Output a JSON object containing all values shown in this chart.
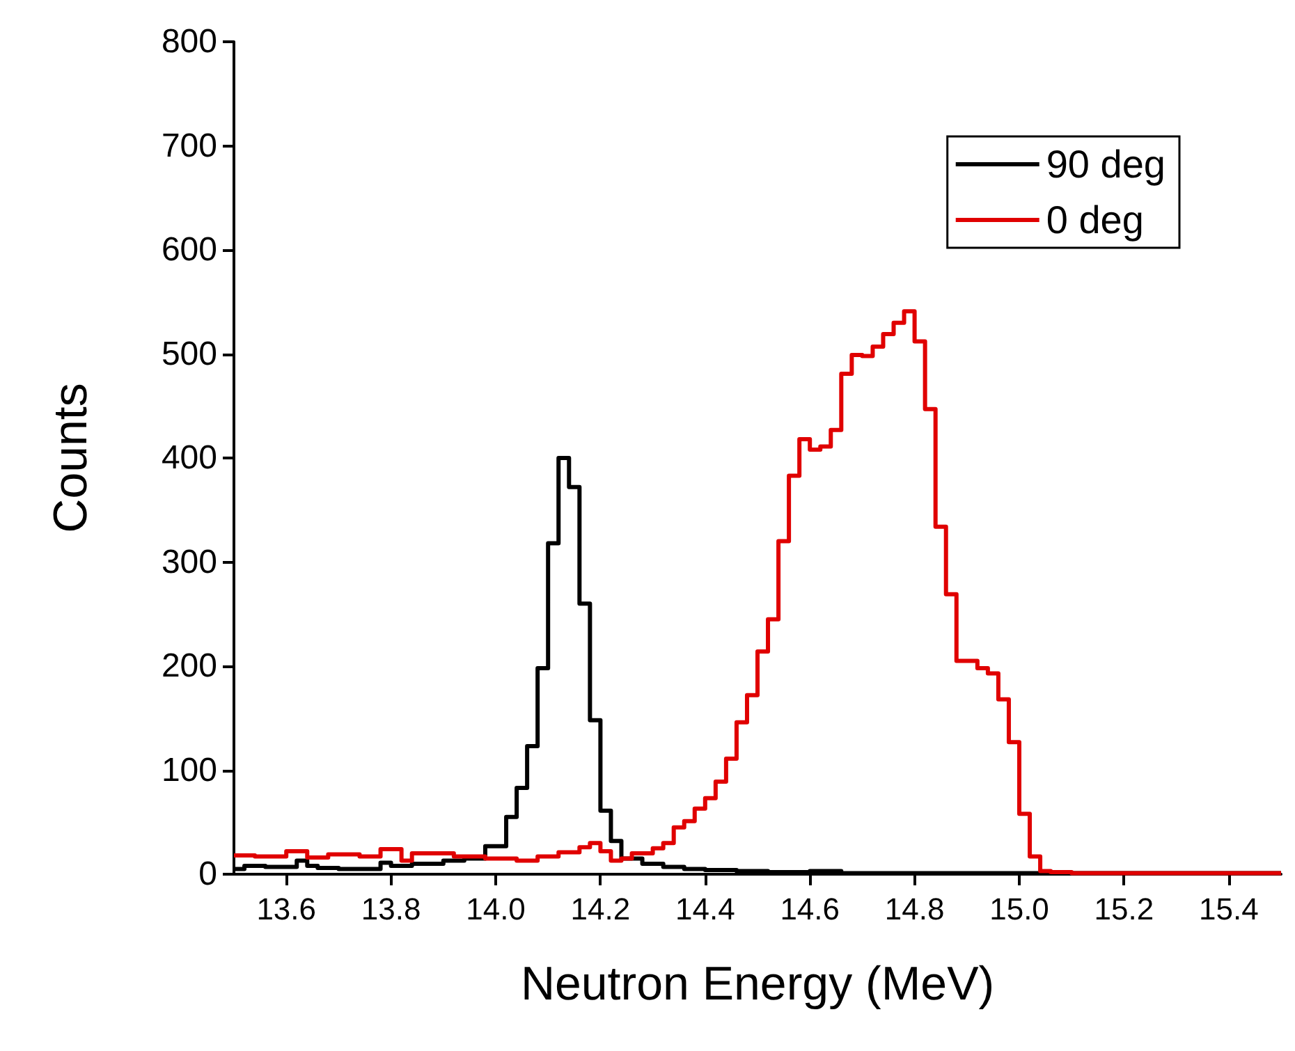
{
  "chart_data": {
    "type": "step",
    "xlabel": "Neutron Energy (MeV)",
    "ylabel": "Counts",
    "xlim": [
      13.5,
      15.5
    ],
    "xticks": [
      13.6,
      13.8,
      {
        "value": 14,
        "label": "14.0"
      },
      14.2,
      14.4,
      14.6,
      14.8,
      {
        "value": 15,
        "label": "15.0"
      },
      15.2,
      15.4
    ],
    "ylim": [
      0,
      800
    ],
    "yticks": [
      0,
      100,
      200,
      300,
      400,
      500,
      600,
      700,
      800
    ],
    "grid": false,
    "legend": "top right",
    "marker": "none",
    "line_style": "solid",
    "series": [
      {
        "name": "90 deg",
        "color": "#000000",
        "x": [
          13.5,
          13.52,
          13.56,
          13.62,
          13.64,
          13.66,
          13.7,
          13.76,
          13.78,
          13.8,
          13.84,
          13.9,
          13.94,
          13.98,
          14.02,
          14.04,
          14.06,
          14.08,
          14.1,
          14.12,
          14.14,
          14.16,
          14.18,
          14.2,
          14.22,
          14.24,
          14.28,
          14.32,
          14.36,
          14.4,
          14.46,
          14.52,
          14.6,
          14.66,
          15.5
        ],
        "values": [
          5,
          8,
          7,
          13,
          8,
          6,
          5,
          5,
          11,
          8,
          10,
          13,
          15,
          27,
          55,
          83,
          123,
          198,
          318,
          400,
          372,
          260,
          148,
          61,
          32,
          15,
          10,
          7,
          5,
          4,
          3,
          2,
          3,
          1,
          1
        ]
      },
      {
        "name": "0 deg",
        "color": "#e00000",
        "x": [
          13.5,
          13.54,
          13.6,
          13.64,
          13.68,
          13.74,
          13.78,
          13.82,
          13.84,
          13.92,
          13.98,
          14.04,
          14.08,
          14.12,
          14.16,
          14.18,
          14.2,
          14.22,
          14.24,
          14.26,
          14.3,
          14.32,
          14.34,
          14.36,
          14.38,
          14.4,
          14.42,
          14.44,
          14.46,
          14.48,
          14.5,
          14.52,
          14.54,
          14.56,
          14.58,
          14.6,
          14.62,
          14.64,
          14.66,
          14.68,
          14.7,
          14.72,
          14.74,
          14.76,
          14.78,
          14.8,
          14.82,
          14.84,
          14.86,
          14.88,
          14.92,
          14.94,
          14.96,
          14.98,
          15.0,
          15.02,
          15.04,
          15.06,
          15.1,
          15.5
        ],
        "values": [
          18,
          17,
          22,
          16,
          19,
          17,
          24,
          13,
          20,
          17,
          15,
          13,
          17,
          21,
          26,
          30,
          22,
          13,
          15,
          20,
          25,
          30,
          45,
          51,
          63,
          73,
          89,
          111,
          146,
          172,
          214,
          245,
          320,
          383,
          418,
          408,
          411,
          427,
          481,
          499,
          498,
          507,
          519,
          530,
          541,
          512,
          447,
          334,
          269,
          205,
          198,
          193,
          168,
          127,
          58,
          17,
          3,
          2,
          1,
          1
        ]
      }
    ]
  }
}
